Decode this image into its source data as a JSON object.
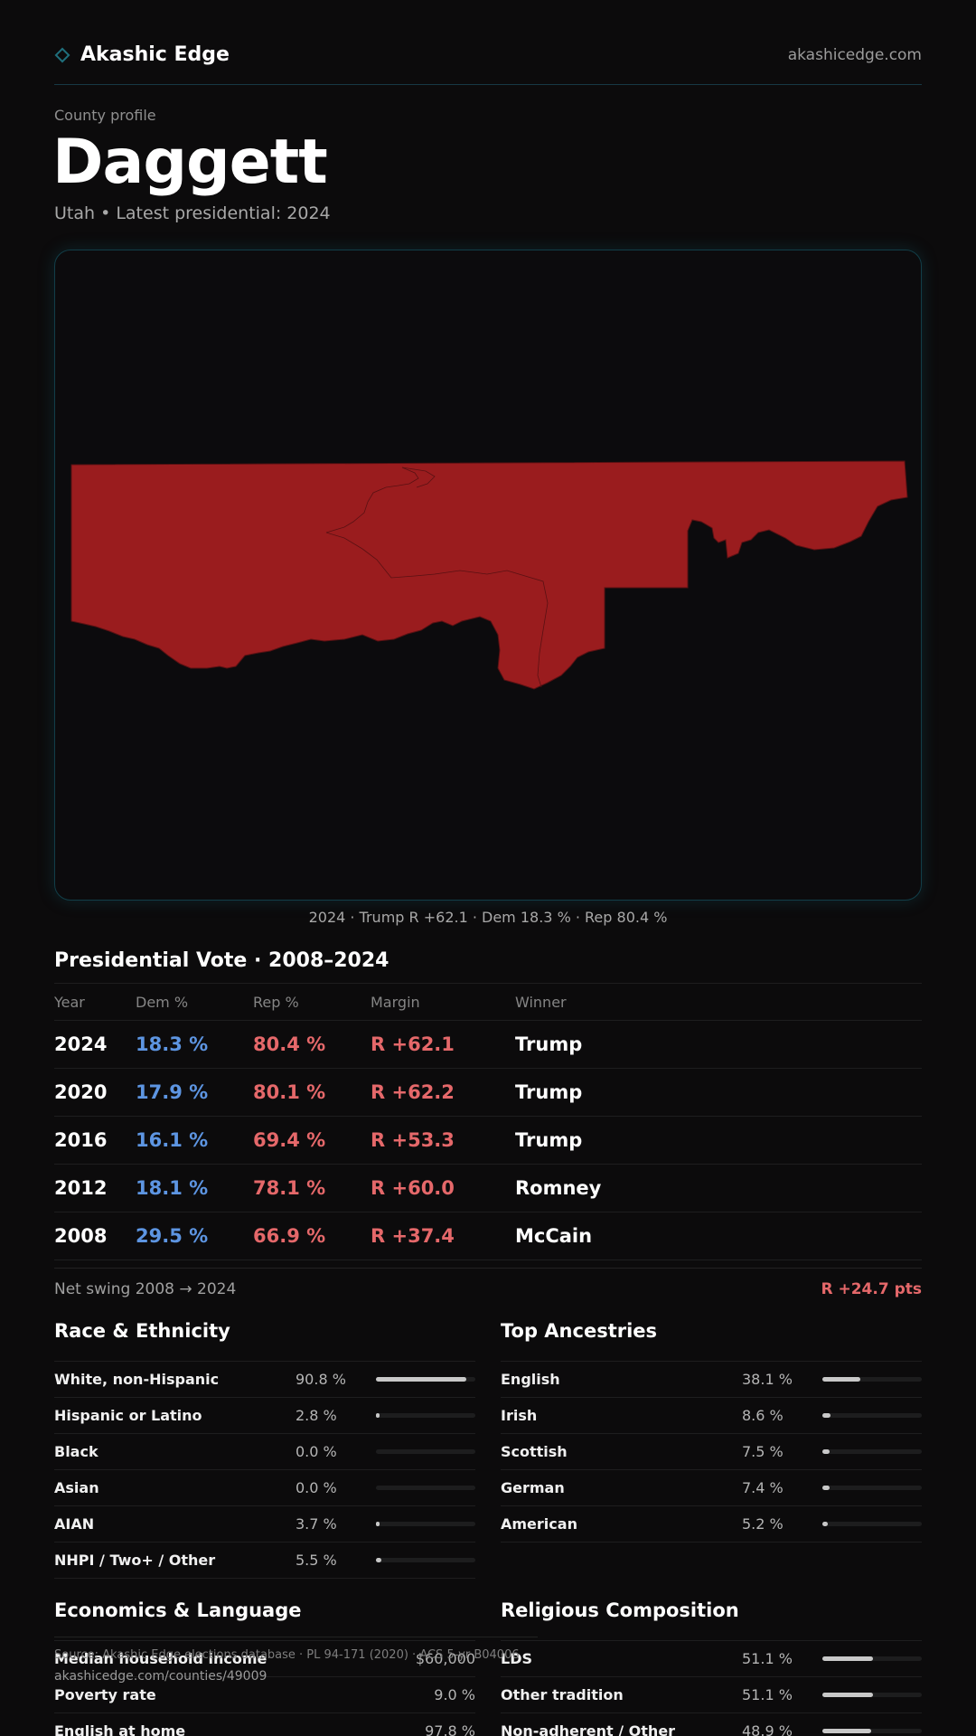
{
  "header": {
    "brand_name": "Akashic Edge",
    "domain": "akashicedge.com"
  },
  "profile": {
    "eyebrow": "County profile",
    "county_name": "Daggett",
    "subtitle": "Utah • Latest presidential: 2024"
  },
  "map": {
    "fill_color": "#9a1c1e",
    "caption": "2024 · Trump R +62.1 · Dem 18.3 % · Rep 80.4 %"
  },
  "vote": {
    "title": "Presidential Vote · 2008–2024",
    "headers": [
      "Year",
      "Dem %",
      "Rep %",
      "Margin",
      "Winner"
    ],
    "rows": [
      {
        "year": "2024",
        "dem": "18.3 %",
        "rep": "80.4 %",
        "margin": "R +62.1",
        "winner": "Trump"
      },
      {
        "year": "2020",
        "dem": "17.9 %",
        "rep": "80.1 %",
        "margin": "R +62.2",
        "winner": "Trump"
      },
      {
        "year": "2016",
        "dem": "16.1 %",
        "rep": "69.4 %",
        "margin": "R +53.3",
        "winner": "Trump"
      },
      {
        "year": "2012",
        "dem": "18.1 %",
        "rep": "78.1 %",
        "margin": "R +60.0",
        "winner": "Romney"
      },
      {
        "year": "2008",
        "dem": "29.5 %",
        "rep": "66.9 %",
        "margin": "R +37.4",
        "winner": "McCain"
      }
    ],
    "colors": {
      "dem": "#5d95e2",
      "rep": "#e5686a"
    }
  },
  "swing": {
    "label": "Net swing 2008 → 2024",
    "value": "R +24.7 pts"
  },
  "race": {
    "title": "Race & Ethnicity",
    "rows": [
      {
        "label": "White, non-Hispanic",
        "value": "90.8 %",
        "pct": 90.8
      },
      {
        "label": "Hispanic or Latino",
        "value": "2.8 %",
        "pct": 2.8
      },
      {
        "label": "Black",
        "value": "0.0 %",
        "pct": 0
      },
      {
        "label": "Asian",
        "value": "0.0 %",
        "pct": 0
      },
      {
        "label": "AIAN",
        "value": "3.7 %",
        "pct": 3.7
      },
      {
        "label": "NHPI / Two+ / Other",
        "value": "5.5 %",
        "pct": 5.5
      }
    ]
  },
  "ancestry": {
    "title": "Top Ancestries",
    "rows": [
      {
        "label": "English",
        "value": "38.1 %",
        "pct": 38.1
      },
      {
        "label": "Irish",
        "value": "8.6 %",
        "pct": 8.6
      },
      {
        "label": "Scottish",
        "value": "7.5 %",
        "pct": 7.5
      },
      {
        "label": "German",
        "value": "7.4 %",
        "pct": 7.4
      },
      {
        "label": "American",
        "value": "5.2 %",
        "pct": 5.2
      }
    ]
  },
  "economics": {
    "title": "Economics & Language",
    "rows": [
      {
        "label": "Median household income",
        "value": "$60,000"
      },
      {
        "label": "Poverty rate",
        "value": "9.0 %"
      },
      {
        "label": "English at home",
        "value": "97.8 %"
      }
    ]
  },
  "religion": {
    "title": "Religious Composition",
    "rows": [
      {
        "label": "LDS",
        "value": "51.1 %",
        "pct": 51.1
      },
      {
        "label": "Other tradition",
        "value": "51.1 %",
        "pct": 51.1
      },
      {
        "label": "Non-adherent / Other",
        "value": "48.9 %",
        "pct": 48.9
      }
    ]
  },
  "footer": {
    "source": "Source: Akashic Edge elections database · PL 94-171 (2020) · ACS 5-yr B04006",
    "url": "akashicedge.com/counties/49009"
  }
}
